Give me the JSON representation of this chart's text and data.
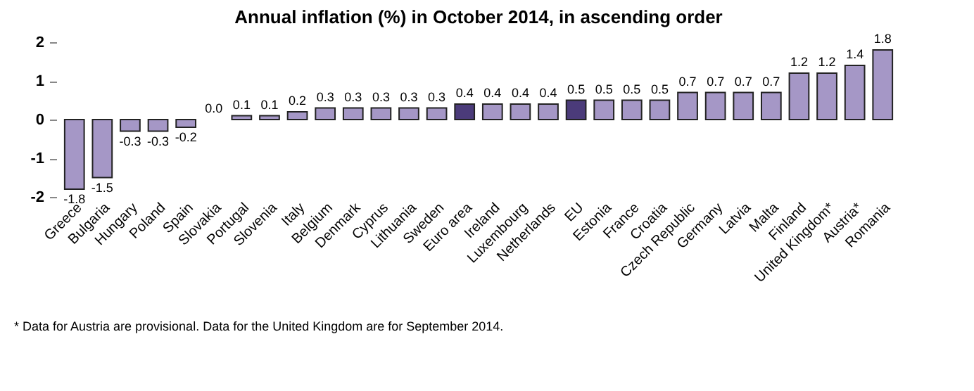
{
  "chart_data": {
    "type": "bar",
    "title": "Annual inflation (%) in October 2014, in ascending order",
    "categories": [
      "Greece",
      "Bulgaria",
      "Hungary",
      "Poland",
      "Spain",
      "Slovakia",
      "Portugal",
      "Slovenia",
      "Italy",
      "Belgium",
      "Denmark",
      "Cyprus",
      "Lithuania",
      "Sweden",
      "Euro area",
      "Ireland",
      "Luxembourg",
      "Netherlands",
      "EU",
      "Estonia",
      "France",
      "Croatia",
      "Czech Republic",
      "Germany",
      "Latvia",
      "Malta",
      "Finland",
      "United Kingdom*",
      "Austria*",
      "Romania"
    ],
    "values": [
      -1.8,
      -1.5,
      -0.3,
      -0.3,
      -0.2,
      0.0,
      0.1,
      0.1,
      0.2,
      0.3,
      0.3,
      0.3,
      0.3,
      0.3,
      0.4,
      0.4,
      0.4,
      0.4,
      0.5,
      0.5,
      0.5,
      0.5,
      0.7,
      0.7,
      0.7,
      0.7,
      1.2,
      1.2,
      1.4,
      1.8
    ],
    "colors": [
      "#a597c6",
      "#a597c6",
      "#a597c6",
      "#a597c6",
      "#a597c6",
      "#a597c6",
      "#a597c6",
      "#a597c6",
      "#a597c6",
      "#a597c6",
      "#a597c6",
      "#a597c6",
      "#a597c6",
      "#a597c6",
      "#4b3b7a",
      "#a597c6",
      "#a597c6",
      "#a597c6",
      "#4b3b7a",
      "#a597c6",
      "#a597c6",
      "#a597c6",
      "#a597c6",
      "#a597c6",
      "#a597c6",
      "#a597c6",
      "#a597c6",
      "#a597c6",
      "#a597c6",
      "#a597c6"
    ],
    "value_labels": [
      "-1.8",
      "-1.5",
      "-0.3",
      "-0.3",
      "-0.2",
      "0.0",
      "0.1",
      "0.1",
      "0.2",
      "0.3",
      "0.3",
      "0.3",
      "0.3",
      "0.3",
      "0.4",
      "0.4",
      "0.4",
      "0.4",
      "0.5",
      "0.5",
      "0.5",
      "0.5",
      "0.7",
      "0.7",
      "0.7",
      "0.7",
      "1.2",
      "1.2",
      "1.4",
      "1.8"
    ],
    "ylim": [
      -2,
      2
    ],
    "yticks": [
      -2,
      -1,
      0,
      1,
      2
    ],
    "grid": false,
    "annotations": [
      "* Data for Austria are provisional. Data for the United Kingdom are for September 2014."
    ]
  }
}
